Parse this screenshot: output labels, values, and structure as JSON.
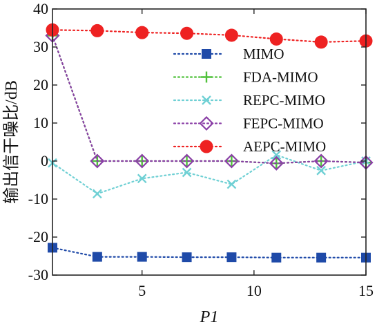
{
  "chart_data": {
    "type": "line",
    "title": "",
    "xlabel": "P1",
    "ylabel": "输出信干噪比/dB",
    "xlim": [
      1,
      15
    ],
    "ylim": [
      -30,
      40
    ],
    "xticks": [
      5,
      10,
      15
    ],
    "yticks": [
      -30,
      -20,
      -10,
      0,
      10,
      20,
      30,
      40
    ],
    "grid": false,
    "legend_position": "top-right",
    "x": [
      1,
      3,
      5,
      7,
      9,
      11,
      13,
      15
    ],
    "series": [
      {
        "name": "MIMO",
        "color": "#1f4aa8",
        "marker": "square",
        "linestyle": "dotted",
        "values": [
          -22.8,
          -25.2,
          -25.2,
          -25.3,
          -25.3,
          -25.4,
          -25.4,
          -25.4
        ]
      },
      {
        "name": "FDA-MIMO",
        "color": "#4fc13a",
        "marker": "plus",
        "linestyle": "dotted",
        "values": [
          33.0,
          0.0,
          0.0,
          0.0,
          0.0,
          -0.6,
          0.0,
          -0.4
        ]
      },
      {
        "name": "REPC-MIMO",
        "color": "#6fd0d4",
        "marker": "x",
        "linestyle": "dotted",
        "values": [
          -0.5,
          -8.6,
          -4.6,
          -3.0,
          -6.1,
          1.6,
          -2.5,
          0.0
        ]
      },
      {
        "name": "FEPC-MIMO",
        "color": "#8a3fa6",
        "marker": "diamond",
        "linestyle": "dotted",
        "values": [
          33.0,
          0.0,
          0.0,
          0.0,
          0.0,
          -0.6,
          0.0,
          -0.4
        ]
      },
      {
        "name": "AEPC-MIMO",
        "color": "#ee2222",
        "marker": "circle",
        "linestyle": "dotted",
        "values": [
          34.5,
          34.3,
          33.8,
          33.6,
          33.1,
          32.1,
          31.3,
          31.6
        ]
      }
    ]
  }
}
